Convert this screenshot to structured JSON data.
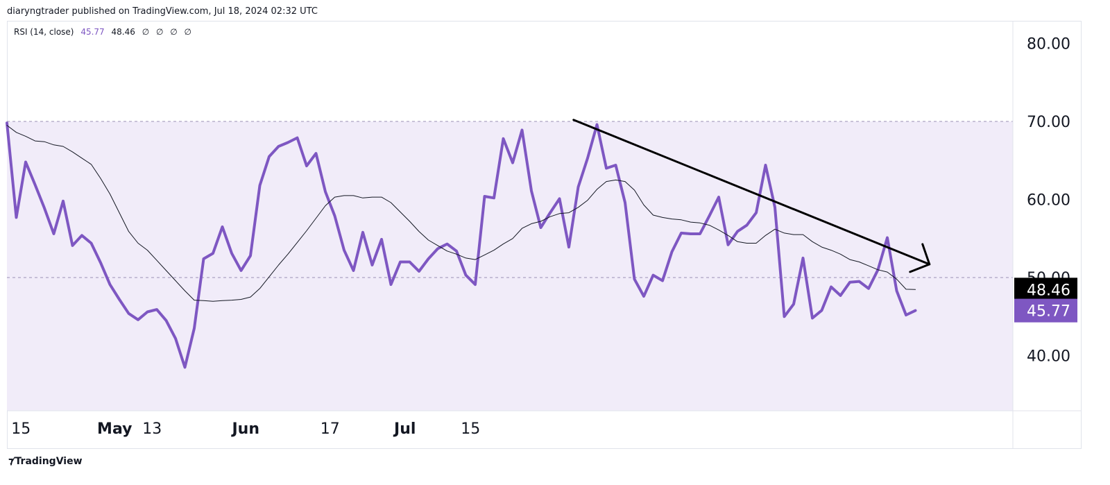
{
  "header": {
    "published": "diaryngtrader published on TradingView.com, Jul 18, 2024 02:32 UTC"
  },
  "legend": {
    "indicator": "RSI (14, close)",
    "rsi_value": "45.77",
    "ma_value": "48.46",
    "extras": [
      "∅",
      "∅",
      "∅",
      "∅"
    ]
  },
  "footer": {
    "brand": "TradingView",
    "logo_icon": "tradingview-logo-icon"
  },
  "colors": {
    "rsi": "#7e57c2",
    "ma": "#131722",
    "band": "#f1ecf9",
    "trendline": "#000000"
  },
  "chart_data": {
    "type": "line",
    "title": "",
    "xlabel": "",
    "ylabel": "",
    "ylim": [
      32.5,
      82.5
    ],
    "yticks": [
      "80.00",
      "70.00",
      "60.00",
      "50.00",
      "40.00"
    ],
    "band": [
      30,
      70
    ],
    "midline": 50,
    "x_tick_labels": [
      {
        "label": "15",
        "bold": false,
        "x": 1.5
      },
      {
        "label": "May",
        "bold": true,
        "x": 11.5
      },
      {
        "label": "13",
        "bold": false,
        "x": 15.5
      },
      {
        "label": "Jun",
        "bold": true,
        "x": 25.5
      },
      {
        "label": "17",
        "bold": false,
        "x": 34.5
      },
      {
        "label": "Jul",
        "bold": true,
        "x": 42.5
      },
      {
        "label": "15",
        "bold": false,
        "x": 49.5
      }
    ],
    "series": [
      {
        "name": "RSI",
        "values": [
          69.8,
          57.7,
          64.8,
          61.9,
          58.9,
          55.6,
          59.8,
          54.1,
          55.4,
          54.4,
          51.9,
          49.1,
          47.2,
          45.4,
          44.6,
          45.6,
          45.9,
          44.5,
          42.2,
          38.5,
          43.5,
          52.4,
          53.1,
          56.5,
          53.1,
          50.9,
          52.8,
          61.8,
          65.5,
          66.8,
          67.3,
          67.9,
          64.3,
          65.9,
          61.0,
          57.9,
          53.5,
          50.9,
          55.8,
          51.6,
          54.9,
          49.1,
          52.0,
          52.0,
          50.8,
          52.4,
          53.7,
          54.3,
          53.4,
          50.3,
          49.1,
          60.4,
          60.2,
          67.8,
          64.7,
          68.9,
          61.1,
          56.4,
          58.3,
          60.1,
          53.9,
          61.6,
          65.3,
          69.6,
          64.0,
          64.4,
          59.6,
          49.8,
          47.6,
          50.3,
          49.6,
          53.3,
          55.7,
          55.6,
          55.6,
          57.9,
          60.3,
          54.2,
          55.9,
          56.7,
          58.3,
          64.4,
          59.0,
          45.0,
          46.6,
          52.5,
          44.8,
          45.8,
          48.8,
          47.7,
          49.4,
          49.5,
          48.6,
          51.0,
          55.1,
          48.3,
          45.2,
          45.77
        ],
        "style": "thick"
      },
      {
        "name": "MA",
        "values": [
          69.5,
          68.6,
          68.1,
          67.5,
          67.4,
          67.0,
          66.8,
          66.1,
          65.3,
          64.5,
          62.7,
          60.7,
          58.3,
          55.9,
          54.4,
          53.5,
          52.2,
          50.9,
          49.6,
          48.3,
          47.1,
          47.05,
          46.95,
          47.05,
          47.1,
          47.2,
          47.5,
          48.6,
          50.1,
          51.6,
          53.0,
          54.5,
          56.0,
          57.6,
          59.2,
          60.3,
          60.5,
          60.5,
          60.2,
          60.3,
          60.3,
          59.6,
          58.4,
          57.2,
          55.9,
          54.8,
          54.1,
          53.4,
          53.0,
          52.5,
          52.3,
          52.9,
          53.5,
          54.3,
          55.0,
          56.3,
          56.9,
          57.2,
          57.8,
          58.2,
          58.3,
          59.0,
          59.9,
          61.3,
          62.3,
          62.5,
          62.3,
          61.2,
          59.3,
          58.0,
          57.7,
          57.5,
          57.4,
          57.1,
          57.0,
          56.7,
          56.1,
          55.4,
          54.6,
          54.4,
          54.4,
          55.4,
          56.2,
          55.7,
          55.5,
          55.5,
          54.6,
          53.9,
          53.5,
          53.0,
          52.3,
          52.0,
          51.5,
          51.0,
          50.7,
          49.8,
          48.5,
          48.46
        ],
        "style": "thin"
      }
    ],
    "trendline": {
      "from": [
        60.5,
        70.2
      ],
      "to": [
        98.5,
        51.7
      ],
      "arrowhead": true
    },
    "price_badges": [
      {
        "value": "48.46",
        "y": 48.46,
        "color": "#000000"
      },
      {
        "value": "45.77",
        "y": 45.77,
        "color": "#7e57c2"
      }
    ],
    "partially_hidden_tick": "50.00",
    "grid": false,
    "legend_position": "top-left"
  }
}
